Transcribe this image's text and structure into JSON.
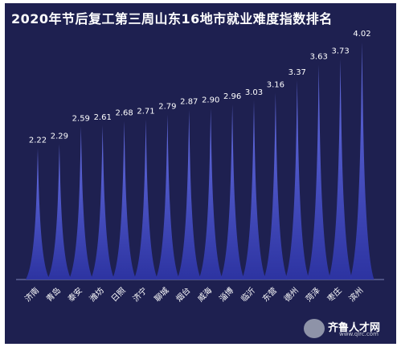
{
  "chart_data": {
    "type": "bar",
    "title": "2020年节后复工第三周山东16地市就业难度指数排名",
    "categories": [
      "济南",
      "青岛",
      "泰安",
      "潍坊",
      "日照",
      "济宁",
      "聊城",
      "烟台",
      "威海",
      "淄博",
      "临沂",
      "东营",
      "德州",
      "菏泽",
      "枣庄",
      "滨州"
    ],
    "values": [
      2.22,
      2.29,
      2.59,
      2.61,
      2.68,
      2.71,
      2.79,
      2.87,
      2.9,
      2.96,
      3.03,
      3.16,
      3.37,
      3.63,
      3.73,
      4.02
    ],
    "value_labels": [
      "2.22",
      "2.29",
      "2.59",
      "2.61",
      "2.68",
      "2.71",
      "2.79",
      "2.87",
      "2.90",
      "2.96",
      "3.03",
      "3.16",
      "3.37",
      "3.63",
      "3.73",
      "4.02"
    ],
    "ylim": [
      0,
      4.02
    ],
    "grid": false,
    "colors": {
      "background": "#1e2050",
      "bar": "#3a43c4",
      "bar_light": "#6c76ee",
      "label": "#ffffff"
    }
  },
  "logo": {
    "text": "齐鲁人才网",
    "url": "www.qlrc.com"
  }
}
